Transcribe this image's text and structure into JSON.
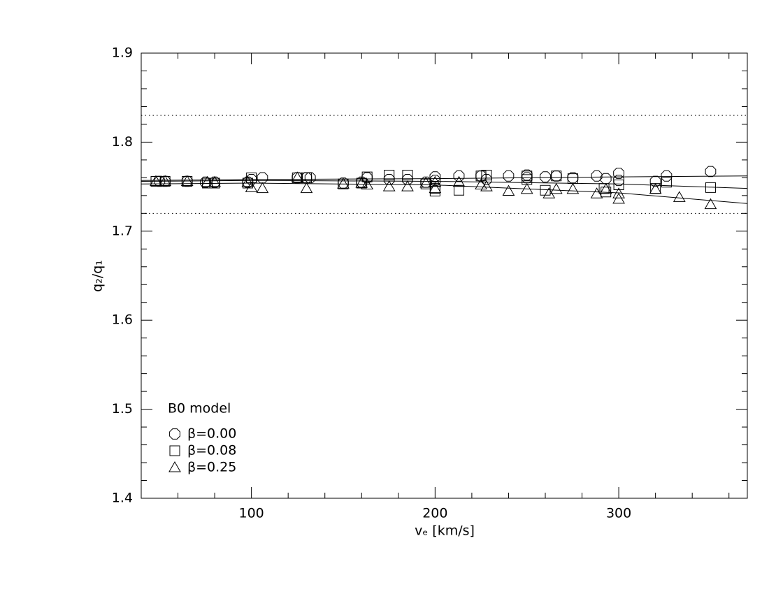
{
  "chart_data": {
    "type": "scatter",
    "xlabel": "vₑ [km/s]",
    "ylabel": "q₂/q₁",
    "xlim": [
      40,
      370
    ],
    "ylim": [
      1.4,
      1.9
    ],
    "xticks": [
      100,
      200,
      300
    ],
    "yticks": [
      1.4,
      1.5,
      1.6,
      1.7,
      1.8,
      1.9
    ],
    "xminorticks": [
      60,
      80,
      120,
      140,
      160,
      180,
      220,
      240,
      260,
      280,
      320,
      340,
      360
    ],
    "yminorticks": [
      1.42,
      1.44,
      1.46,
      1.48,
      1.52,
      1.54,
      1.56,
      1.58,
      1.62,
      1.64,
      1.66,
      1.68,
      1.72,
      1.74,
      1.76,
      1.78,
      1.82,
      1.84,
      1.86,
      1.88
    ],
    "hlines": [
      1.83,
      1.72
    ],
    "legend_title": "B0 model",
    "legend": "lower left",
    "series": [
      {
        "name": "β=0.00",
        "color": "#000000",
        "marker": "circle",
        "x": [
          50,
          53,
          65,
          75,
          80,
          98,
          100,
          106,
          125,
          130,
          132,
          150,
          160,
          163,
          175,
          185,
          195,
          200,
          200,
          213,
          225,
          228,
          240,
          250,
          250,
          260,
          266,
          275,
          288,
          293,
          300,
          300,
          320,
          326,
          350
        ],
        "values": [
          1.756,
          1.756,
          1.756,
          1.755,
          1.755,
          1.755,
          1.758,
          1.76,
          1.76,
          1.76,
          1.76,
          1.754,
          1.755,
          1.76,
          1.758,
          1.758,
          1.755,
          1.761,
          1.757,
          1.762,
          1.762,
          1.758,
          1.762,
          1.763,
          1.76,
          1.761,
          1.762,
          1.76,
          1.762,
          1.759,
          1.765,
          1.757,
          1.756,
          1.762,
          1.767
        ],
        "fit_x": [
          40,
          100,
          200,
          300,
          370
        ],
        "fit": [
          1.757,
          1.758,
          1.759,
          1.761,
          1.762
        ]
      },
      {
        "name": "β=0.08",
        "color": "#000000",
        "marker": "square",
        "x": [
          48,
          53,
          65,
          76,
          80,
          98,
          100,
          125,
          130,
          150,
          160,
          163,
          175,
          185,
          195,
          200,
          200,
          213,
          225,
          228,
          250,
          250,
          260,
          266,
          275,
          292,
          293,
          300,
          320,
          326,
          350
        ],
        "values": [
          1.756,
          1.756,
          1.756,
          1.754,
          1.754,
          1.754,
          1.76,
          1.76,
          1.76,
          1.753,
          1.754,
          1.761,
          1.763,
          1.763,
          1.753,
          1.748,
          1.745,
          1.746,
          1.762,
          1.763,
          1.762,
          1.758,
          1.746,
          1.762,
          1.759,
          1.748,
          1.744,
          1.752,
          1.748,
          1.755,
          1.749
        ],
        "fit_x": [
          40,
          100,
          200,
          300,
          370
        ],
        "fit": [
          1.756,
          1.757,
          1.756,
          1.753,
          1.748
        ]
      },
      {
        "name": "β=0.25",
        "color": "#000000",
        "marker": "triangle",
        "x": [
          48,
          53,
          65,
          76,
          80,
          98,
          100,
          106,
          125,
          130,
          150,
          160,
          163,
          175,
          185,
          195,
          200,
          200,
          213,
          225,
          228,
          240,
          250,
          262,
          266,
          275,
          288,
          293,
          300,
          300,
          320,
          333,
          350
        ],
        "values": [
          1.756,
          1.756,
          1.756,
          1.755,
          1.755,
          1.755,
          1.749,
          1.748,
          1.76,
          1.748,
          1.753,
          1.754,
          1.752,
          1.75,
          1.75,
          1.754,
          1.755,
          1.748,
          1.755,
          1.752,
          1.75,
          1.745,
          1.747,
          1.742,
          1.747,
          1.747,
          1.742,
          1.747,
          1.742,
          1.736,
          1.747,
          1.738,
          1.73
        ],
        "fit_x": [
          40,
          100,
          200,
          300,
          370
        ],
        "fit": [
          1.753,
          1.754,
          1.752,
          1.743,
          1.731
        ]
      }
    ]
  }
}
